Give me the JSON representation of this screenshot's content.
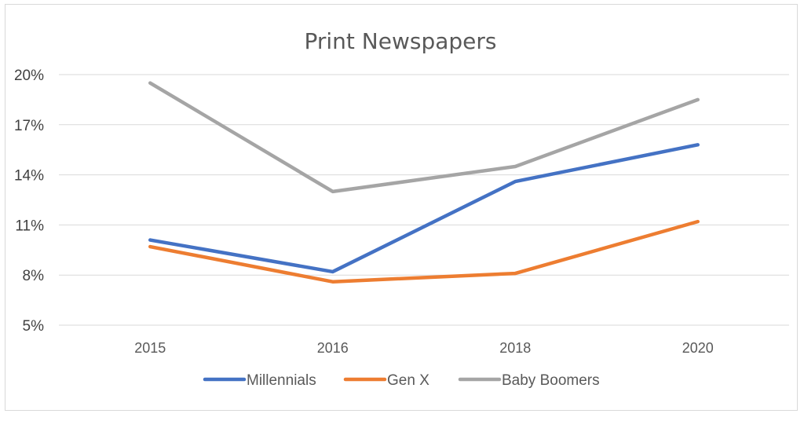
{
  "chart_data": {
    "type": "line",
    "title": "Print Newspapers",
    "xlabel": "",
    "ylabel": "",
    "categories": [
      "2015",
      "2016",
      "2018",
      "2020"
    ],
    "ylim": [
      5,
      20
    ],
    "yticks": [
      5,
      8,
      11,
      14,
      17,
      20
    ],
    "ytick_labels": [
      "5%",
      "8%",
      "11%",
      "14%",
      "17%",
      "20%"
    ],
    "grid": true,
    "legend": "bottom",
    "series": [
      {
        "name": "Millennials",
        "color": "#4472c4",
        "values": [
          10.1,
          8.2,
          13.6,
          15.8
        ]
      },
      {
        "name": "Gen X",
        "color": "#ed7d31",
        "values": [
          9.7,
          7.6,
          8.1,
          11.2
        ]
      },
      {
        "name": "Baby Boomers",
        "color": "#a5a5a5",
        "values": [
          19.5,
          13.0,
          14.5,
          18.5
        ]
      }
    ]
  }
}
